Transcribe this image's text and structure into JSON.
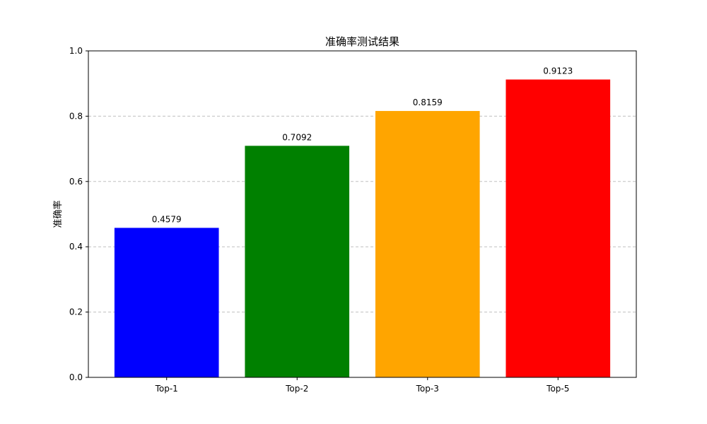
{
  "chart_data": {
    "type": "bar",
    "title": "准确率测试结果",
    "xlabel": "",
    "ylabel": "准确率",
    "categories": [
      "Top-1",
      "Top-2",
      "Top-3",
      "Top-5"
    ],
    "values": [
      0.4579,
      0.7092,
      0.8159,
      0.9123
    ],
    "data_labels": [
      "0.4579",
      "0.7092",
      "0.8159",
      "0.9123"
    ],
    "colors": [
      "#0000ff",
      "#008000",
      "#ffa500",
      "#ff0000"
    ],
    "ylim": [
      0,
      1.0
    ],
    "yticks": [
      0.0,
      0.2,
      0.4,
      0.6,
      0.8,
      1.0
    ],
    "ytick_labels": [
      "0.0",
      "0.2",
      "0.4",
      "0.6",
      "0.8",
      "1.0"
    ],
    "grid": {
      "axis": "y",
      "style": "dashed",
      "color": "#c0c0c0"
    },
    "legend": "none"
  }
}
